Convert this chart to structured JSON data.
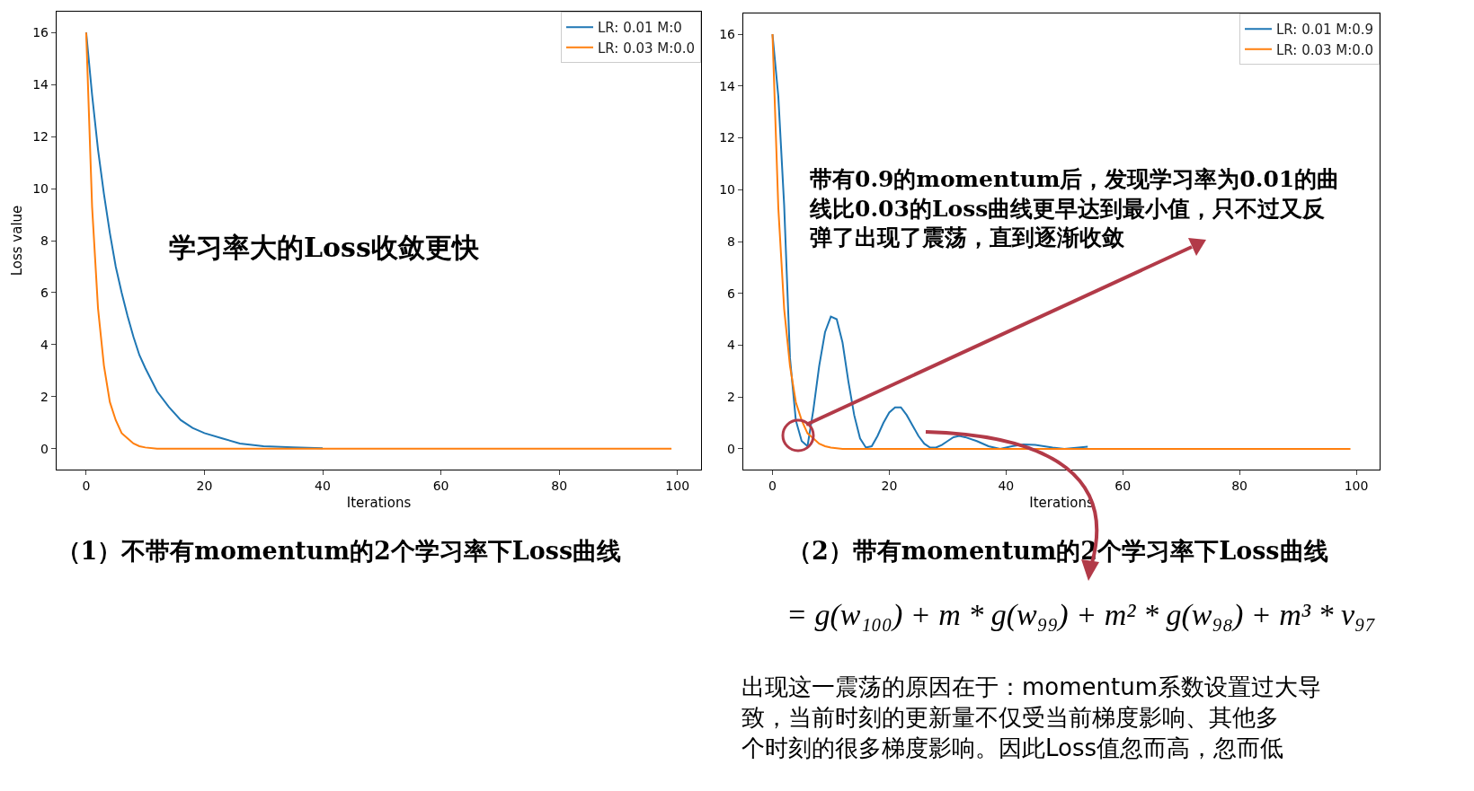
{
  "chart_data": [
    {
      "type": "line",
      "title": "（1）不带有momentum的2个学习率下Loss曲线",
      "xlabel": "Iterations",
      "ylabel": "Loss value",
      "xlim": [
        -5,
        104
      ],
      "ylim": [
        -0.8,
        16.8
      ],
      "xticks": [
        0,
        20,
        40,
        60,
        80,
        100
      ],
      "yticks": [
        0,
        2,
        4,
        6,
        8,
        10,
        12,
        14,
        16
      ],
      "legend": "top right",
      "annotations": [
        "学习率大的Loss收敛更快"
      ],
      "series": [
        {
          "name": "LR: 0.01 M:0",
          "color": "#1f77b4",
          "x": [
            0,
            1,
            2,
            3,
            4,
            5,
            6,
            7,
            8,
            9,
            10,
            12,
            14,
            16,
            18,
            20,
            23,
            26,
            30,
            35,
            40
          ],
          "values": [
            16,
            13.6,
            11.5,
            9.8,
            8.3,
            7.0,
            6.0,
            5.1,
            4.3,
            3.6,
            3.1,
            2.2,
            1.6,
            1.1,
            0.8,
            0.6,
            0.4,
            0.2,
            0.1,
            0.05,
            0.02
          ]
        },
        {
          "name": "LR: 0.03 M:0.0",
          "color": "#ff7f0e",
          "x": [
            0,
            1,
            2,
            3,
            4,
            5,
            6,
            7,
            8,
            9,
            10,
            12,
            15,
            20,
            40,
            60,
            80,
            99
          ],
          "values": [
            16,
            9.3,
            5.4,
            3.2,
            1.8,
            1.1,
            0.6,
            0.4,
            0.2,
            0.1,
            0.05,
            0,
            0,
            0,
            0,
            0,
            0,
            0
          ]
        }
      ]
    },
    {
      "type": "line",
      "title": "（2）带有momentum的2个学习率下Loss曲线",
      "xlabel": "Iterations",
      "xlim": [
        -5,
        104
      ],
      "ylim": [
        -0.8,
        16.8
      ],
      "xticks": [
        0,
        20,
        40,
        60,
        80,
        100
      ],
      "yticks": [
        0,
        2,
        4,
        6,
        8,
        10,
        12,
        14,
        16
      ],
      "legend": "top right",
      "annotations": [
        "带有0.9的momentum后，发现学习率为0.01的曲线比0.03的Loss曲线更早达到最小值，只不过又反弹了出现了震荡，直到逐渐收敛",
        "= g(w₁₀₀) + m * g(w₉₉) + m² * g(w₉₈) + m³ * v₉₇",
        "出现这一震荡的原因在于：momentum系数设置过大导致，当前时刻的更新量不仅受当前梯度影响、其他多个时刻的很多梯度影响。因此Loss值忽而高，忽而低"
      ],
      "series": [
        {
          "name": "LR: 0.01 M:0.9",
          "color": "#1f77b4",
          "x": [
            0,
            1,
            2,
            3,
            4,
            5,
            6,
            7,
            8,
            9,
            10,
            11,
            12,
            13,
            14,
            15,
            16,
            17,
            18,
            19,
            20,
            21,
            22,
            23,
            24,
            25,
            26,
            27,
            28,
            29,
            30,
            31,
            32,
            33,
            35,
            37,
            39,
            41,
            43,
            45,
            48,
            50,
            54
          ],
          "values": [
            16,
            13.6,
            9.4,
            3.5,
            1.1,
            0.3,
            0.1,
            1.5,
            3.2,
            4.5,
            5.1,
            5.0,
            4.1,
            2.6,
            1.3,
            0.4,
            0.05,
            0.1,
            0.5,
            1.0,
            1.4,
            1.6,
            1.6,
            1.3,
            0.9,
            0.5,
            0.2,
            0.05,
            0.05,
            0.15,
            0.3,
            0.45,
            0.5,
            0.45,
            0.3,
            0.1,
            0,
            0.1,
            0.17,
            0.15,
            0.05,
            0,
            0.08
          ]
        },
        {
          "name": "LR: 0.03 M:0.0",
          "color": "#ff7f0e",
          "x": [
            0,
            1,
            2,
            3,
            4,
            5,
            6,
            7,
            8,
            9,
            10,
            12,
            15,
            20,
            40,
            60,
            80,
            99
          ],
          "values": [
            16,
            9.3,
            5.4,
            3.2,
            1.8,
            1.1,
            0.6,
            0.4,
            0.2,
            0.1,
            0.05,
            0,
            0,
            0,
            0,
            0,
            0,
            0
          ]
        }
      ]
    }
  ]
}
